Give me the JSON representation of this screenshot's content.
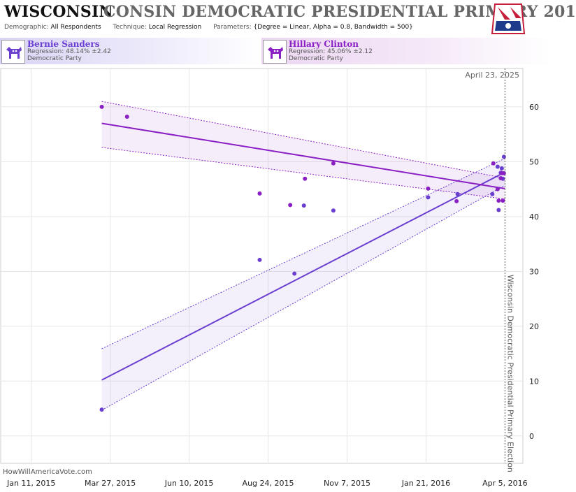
{
  "header": {
    "state": "WISCONSIN",
    "race": "CONSIN DEMOCRATIC PRESIDENTIAL PRIMARY 201",
    "params": [
      {
        "key": "Demographic:",
        "value": "All Respondents"
      },
      {
        "key": "Technique:",
        "value": "Local Regression"
      },
      {
        "key": "Parameters:",
        "value": "{Degree = Linear, Alpha = 0.8, Bandwidth = 500}"
      }
    ]
  },
  "candidates": [
    {
      "name": "Bernie Sanders",
      "regression": "Regression: 48.14% ±2.42",
      "party": "Democratic Party",
      "color": "#6a3fd0"
    },
    {
      "name": "Hillary Clinton",
      "regression": "Regression: 45.06% ±2.12",
      "party": "Democratic Party",
      "color": "#8a1fc4"
    }
  ],
  "footer": {
    "site": "HowWillAmericaVote.com"
  },
  "chart_data": {
    "type": "scatter",
    "date_label": "April 23, 2025",
    "event_label": "Wisconsin Democratic Presidential Primary Election",
    "event_date": "2016-04-05",
    "x_range": [
      "2014-12-13",
      "2016-04-22"
    ],
    "ylim": [
      -5,
      67
    ],
    "y_ticks": [
      0,
      10,
      20,
      30,
      40,
      50,
      60
    ],
    "x_ticks": [
      {
        "date": "2015-01-11",
        "label": "Jan 11, 2015"
      },
      {
        "date": "2015-03-27",
        "label": "Mar 27, 2015"
      },
      {
        "date": "2015-06-10",
        "label": "Jun 10, 2015"
      },
      {
        "date": "2015-08-24",
        "label": "Aug 24, 2015"
      },
      {
        "date": "2015-11-07",
        "label": "Nov 7, 2015"
      },
      {
        "date": "2016-01-21",
        "label": "Jan 21, 2016"
      },
      {
        "date": "2016-04-05",
        "label": "Apr 5, 2016"
      }
    ],
    "grid": true,
    "series": [
      {
        "name": "Bernie Sanders",
        "color": "#6a3fd0",
        "trend": {
          "x": [
            "2015-03-19",
            "2016-04-05"
          ],
          "y": [
            10.2,
            48.1
          ]
        },
        "band_upper": {
          "x": [
            "2015-03-19",
            "2016-04-05"
          ],
          "y": [
            15.9,
            50.6
          ]
        },
        "band_lower": {
          "x": [
            "2015-03-19",
            "2016-04-05"
          ],
          "y": [
            4.7,
            45.7
          ]
        },
        "points": [
          {
            "x": "2015-03-19",
            "y": 4.8
          },
          {
            "x": "2015-08-16",
            "y": 32.1
          },
          {
            "x": "2015-09-18",
            "y": 29.6
          },
          {
            "x": "2015-09-27",
            "y": 42.0
          },
          {
            "x": "2015-10-25",
            "y": 41.1
          },
          {
            "x": "2016-01-23",
            "y": 43.5
          },
          {
            "x": "2016-02-20",
            "y": 44.1
          },
          {
            "x": "2016-03-24",
            "y": 44.1
          },
          {
            "x": "2016-03-29",
            "y": 49.1
          },
          {
            "x": "2016-03-30",
            "y": 41.2
          },
          {
            "x": "2016-04-01",
            "y": 48.0
          },
          {
            "x": "2016-04-02",
            "y": 48.8
          },
          {
            "x": "2016-04-03",
            "y": 46.9
          },
          {
            "x": "2016-04-04",
            "y": 50.9
          }
        ]
      },
      {
        "name": "Hillary Clinton",
        "color": "#8a1fc4",
        "trend": {
          "x": [
            "2015-03-19",
            "2016-04-05"
          ],
          "y": [
            57.0,
            45.1
          ]
        },
        "band_upper": {
          "x": [
            "2015-03-19",
            "2016-04-05"
          ],
          "y": [
            61.0,
            47.0
          ]
        },
        "band_lower": {
          "x": [
            "2015-03-19",
            "2016-04-05"
          ],
          "y": [
            52.6,
            43.2
          ]
        },
        "points": [
          {
            "x": "2015-03-19",
            "y": 60.0
          },
          {
            "x": "2015-04-12",
            "y": 58.2
          },
          {
            "x": "2015-08-16",
            "y": 44.2
          },
          {
            "x": "2015-09-14",
            "y": 42.1
          },
          {
            "x": "2015-09-28",
            "y": 46.9
          },
          {
            "x": "2015-10-25",
            "y": 49.7
          },
          {
            "x": "2016-01-23",
            "y": 45.1
          },
          {
            "x": "2016-02-19",
            "y": 42.8
          },
          {
            "x": "2016-03-25",
            "y": 49.7
          },
          {
            "x": "2016-03-29",
            "y": 45.0
          },
          {
            "x": "2016-03-30",
            "y": 42.9
          },
          {
            "x": "2016-04-01",
            "y": 47.0
          },
          {
            "x": "2016-04-02",
            "y": 47.9
          },
          {
            "x": "2016-04-03",
            "y": 42.9
          },
          {
            "x": "2016-04-04",
            "y": 47.9
          }
        ]
      }
    ]
  }
}
